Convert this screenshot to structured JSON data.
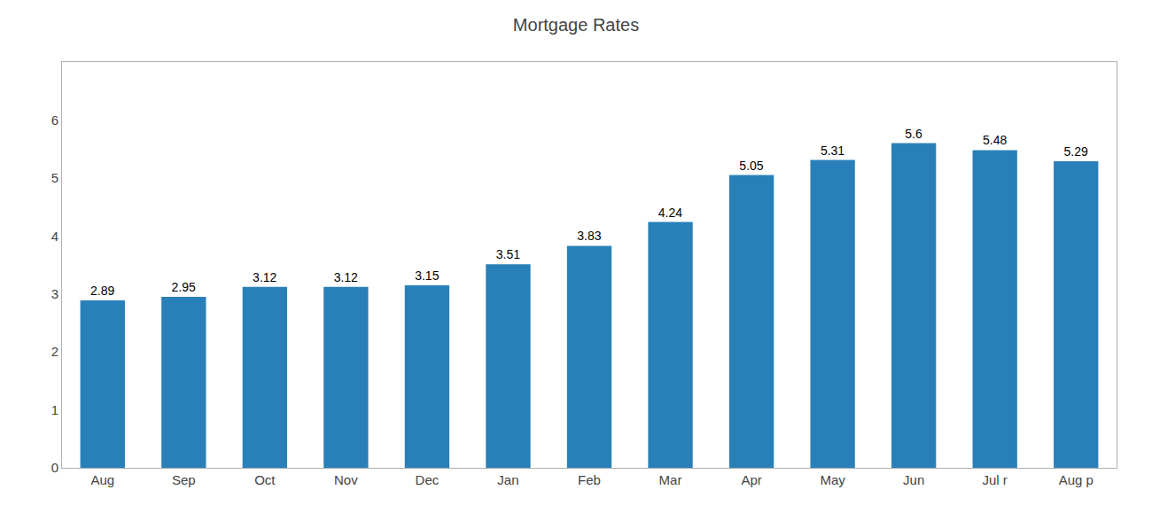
{
  "chart_data": {
    "type": "bar",
    "title": "Mortgage Rates",
    "categories": [
      "Aug",
      "Sep",
      "Oct",
      "Nov",
      "Dec",
      "Jan",
      "Feb",
      "Mar",
      "Apr",
      "May",
      "Jun",
      "Jul r",
      "Aug p"
    ],
    "values": [
      2.89,
      2.95,
      3.12,
      3.12,
      3.15,
      3.51,
      3.83,
      4.24,
      5.05,
      5.31,
      5.6,
      5.48,
      5.29
    ],
    "color": "#2980b9",
    "ylim": [
      0,
      7
    ],
    "yticks": [
      0,
      1,
      2,
      3,
      4,
      5,
      6
    ],
    "grid": false,
    "data_labels": true
  }
}
